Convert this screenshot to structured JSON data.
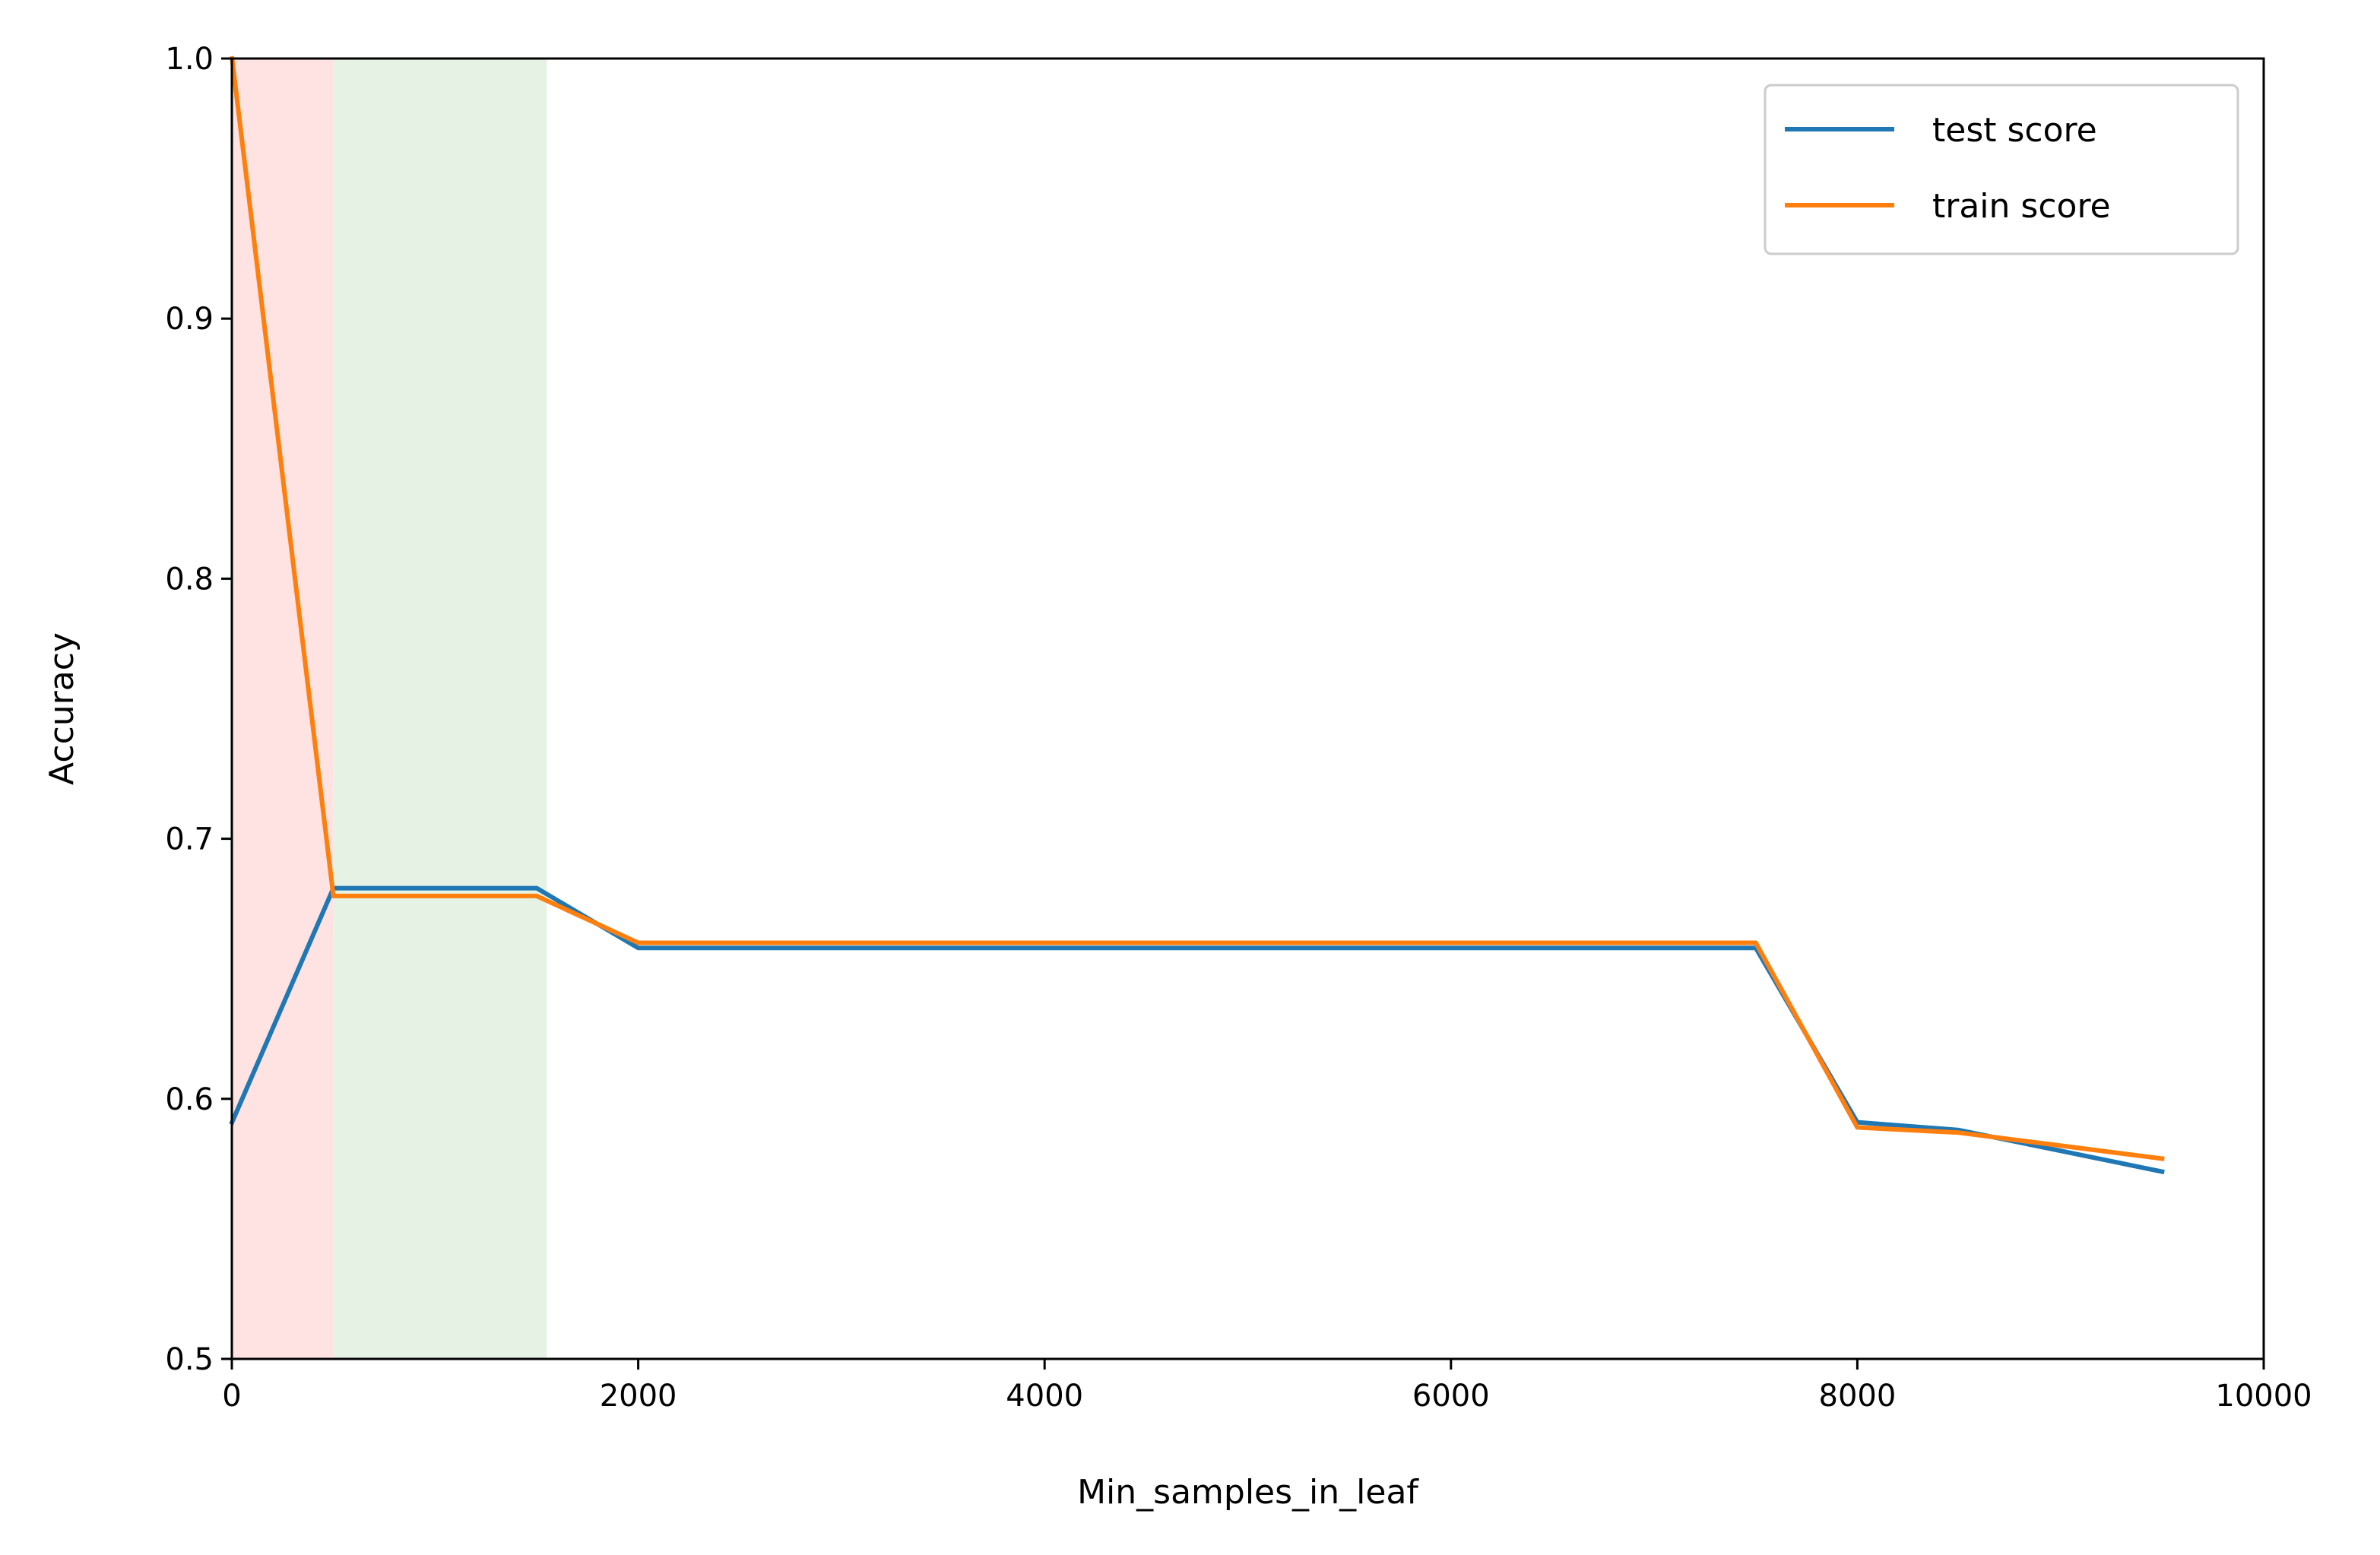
{
  "chart_data": {
    "type": "line",
    "xlabel": "Min_samples_in_leaf",
    "ylabel": "Accuracy",
    "xlim": [
      0,
      10000
    ],
    "ylim": [
      0.5,
      1.0
    ],
    "xticks": [
      0,
      2000,
      4000,
      6000,
      8000,
      10000
    ],
    "xtick_labels": [
      "0",
      "2000",
      "4000",
      "6000",
      "8000",
      "10000"
    ],
    "yticks": [
      0.5,
      0.6,
      0.7,
      0.8,
      0.9,
      1.0
    ],
    "ytick_labels": [
      "0.5",
      "0.6",
      "0.7",
      "0.8",
      "0.9",
      "1.0"
    ],
    "grid": false,
    "legend_position": "top-right",
    "shaded_regions": [
      {
        "x_start": 0,
        "x_end": 500,
        "color": "#ffe3e3"
      },
      {
        "x_start": 500,
        "x_end": 1550,
        "color": "#e6f2e3"
      }
    ],
    "series": [
      {
        "name": "test score",
        "color": "#1f77b4",
        "x": [
          1,
          500,
          1000,
          1500,
          2000,
          2500,
          3000,
          3500,
          4000,
          4500,
          5000,
          5500,
          6000,
          6500,
          7000,
          7500,
          8000,
          8500,
          9000,
          9500
        ],
        "y": [
          0.591,
          0.681,
          0.681,
          0.681,
          0.658,
          0.658,
          0.658,
          0.658,
          0.658,
          0.658,
          0.658,
          0.658,
          0.658,
          0.658,
          0.658,
          0.658,
          0.591,
          0.588,
          0.58,
          0.572
        ]
      },
      {
        "name": "train score",
        "color": "#ff7f0e",
        "x": [
          1,
          500,
          1000,
          1500,
          2000,
          2500,
          3000,
          3500,
          4000,
          4500,
          5000,
          5500,
          6000,
          6500,
          7000,
          7500,
          8000,
          8500,
          9000,
          9500
        ],
        "y": [
          1.0,
          0.678,
          0.678,
          0.678,
          0.66,
          0.66,
          0.66,
          0.66,
          0.66,
          0.66,
          0.66,
          0.66,
          0.66,
          0.66,
          0.66,
          0.66,
          0.589,
          0.587,
          0.582,
          0.577
        ]
      }
    ]
  }
}
